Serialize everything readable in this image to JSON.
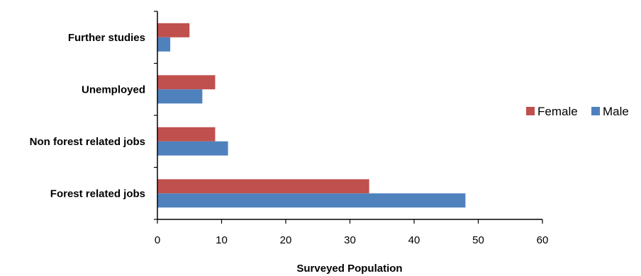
{
  "chart_data": {
    "type": "bar",
    "orientation": "horizontal",
    "categories": [
      "Forest related jobs",
      "Non forest related jobs",
      "Unemployed",
      "Further studies"
    ],
    "series": [
      {
        "name": "Female",
        "color": "#C0504D",
        "values": [
          33,
          9,
          9,
          5
        ]
      },
      {
        "name": "Male",
        "color": "#4F81BD",
        "values": [
          48,
          11,
          7,
          2
        ]
      }
    ],
    "xlabel": "Surveyed Population",
    "ylabel": "",
    "xlim": [
      0,
      60
    ],
    "xticks": [
      "0",
      "10",
      "20",
      "30",
      "40",
      "50",
      "60"
    ],
    "grid": false,
    "legend_position": "right"
  }
}
